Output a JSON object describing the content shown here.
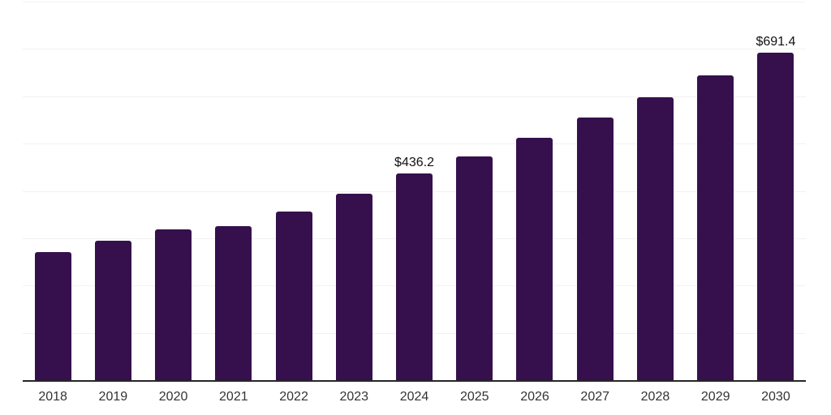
{
  "chart_data": {
    "type": "bar",
    "title": "",
    "xlabel": "",
    "ylabel": "",
    "value_prefix": "$",
    "categories": [
      "2018",
      "2019",
      "2020",
      "2021",
      "2022",
      "2023",
      "2024",
      "2025",
      "2026",
      "2027",
      "2028",
      "2029",
      "2030"
    ],
    "values": [
      270.3,
      294.2,
      318.1,
      325.6,
      356.9,
      393.9,
      436.2,
      472.4,
      512.2,
      554.4,
      597.1,
      644.2,
      691.4
    ],
    "data_labels": [
      "",
      "",
      "",
      "",
      "",
      "",
      "$436.2",
      "",
      "",
      "",
      "",
      "",
      "$691.4"
    ],
    "ylim": [
      0,
      800
    ],
    "gridline_step": 100,
    "grid": "on",
    "legend": "none",
    "y_tick_labels_visible": false
  },
  "colors": {
    "bar": "#36104D",
    "gridline": "#f2f2f2",
    "axis_line": "#262626",
    "tick_label": "#333333",
    "data_label": "#111111",
    "background": "#ffffff"
  }
}
